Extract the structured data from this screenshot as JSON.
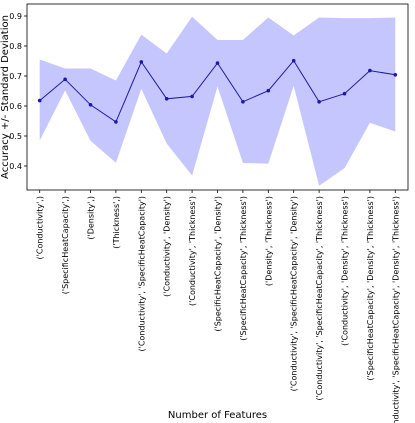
{
  "chart_data": {
    "type": "line",
    "title": "",
    "xlabel": "Number of Features",
    "ylabel": "Accuracy +/- Standard Deviation",
    "categories": [
      "('Conductivity',)",
      "('SpecificHeatCapacity',)",
      "('Density',)",
      "('Thickness',)",
      "('Conductivity', 'SpecificHeatCapacity')",
      "('Conductivity', 'Density')",
      "('Conductivity', 'Thickness')",
      "('SpecificHeatCapacity', 'Density')",
      "('SpecificHeatCapacity', 'Thickness')",
      "('Density', 'Thickness')",
      "('Conductivity', 'SpecificHeatCapacity', 'Density')",
      "('Conductivity', 'SpecificHeatCapacity', 'Thickness')",
      "('Conductivity', 'Density', 'Thickness')",
      "('SpecificHeatCapacity', 'Density', 'Thickness')",
      "('Conductivity', 'SpecificHeatCapacity', 'Density', 'Thickness')"
    ],
    "series": [
      {
        "values": [
          0.618,
          0.689,
          0.604,
          0.547,
          0.747,
          0.624,
          0.632,
          0.743,
          0.614,
          0.651,
          0.751,
          0.614,
          0.641,
          0.718,
          0.704
        ],
        "upper": [
          0.755,
          0.725,
          0.725,
          0.685,
          0.838,
          0.775,
          0.898,
          0.82,
          0.82,
          0.895,
          0.835,
          0.895,
          0.893,
          0.893,
          0.895
        ],
        "lower": [
          0.485,
          0.652,
          0.484,
          0.411,
          0.657,
          0.475,
          0.368,
          0.665,
          0.41,
          0.408,
          0.667,
          0.334,
          0.393,
          0.544,
          0.515
        ]
      }
    ],
    "yticks": [
      "0.4",
      "0.5",
      "0.6",
      "0.7",
      "0.8",
      "0.9"
    ],
    "ylim": [
      0.32,
      0.94
    ],
    "grid": false,
    "colors": {
      "line": "#1a1aa6",
      "band": "#c6c6ff",
      "axis": "#000000"
    }
  }
}
